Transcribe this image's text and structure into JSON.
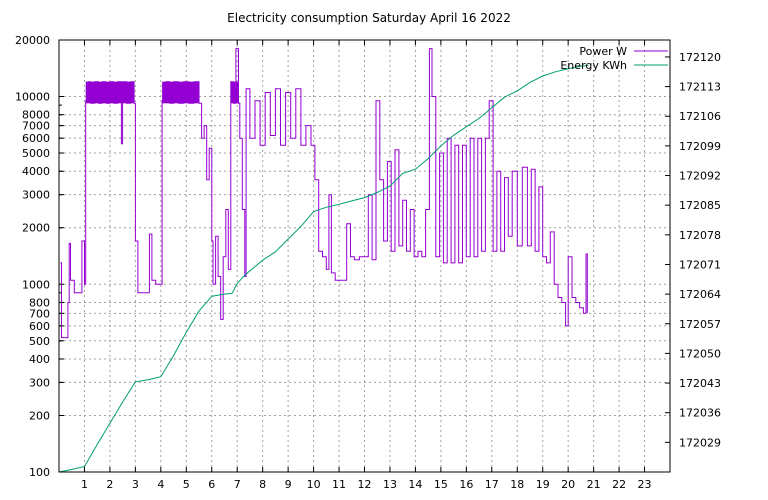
{
  "chart_data": {
    "type": "line",
    "title": "Electricity consumption Saturday April 16 2022",
    "x": {
      "ticks": [
        "1",
        "2",
        "3",
        "4",
        "5",
        "6",
        "7",
        "8",
        "9",
        "10",
        "11",
        "12",
        "13",
        "14",
        "15",
        "16",
        "17",
        "18",
        "19",
        "20",
        "21",
        "22",
        "23"
      ],
      "range": [
        0,
        24
      ]
    },
    "y_left": {
      "scale": "log",
      "range": [
        100,
        20000
      ],
      "ticks": [
        {
          "value": 100,
          "label": "100"
        },
        {
          "value": 200,
          "label": "200"
        },
        {
          "value": 300,
          "label": "300"
        },
        {
          "value": 400,
          "label": "400"
        },
        {
          "value": 500,
          "label": "500"
        },
        {
          "value": 600,
          "label": "600"
        },
        {
          "value": 700,
          "label": "700"
        },
        {
          "value": 800,
          "label": "800"
        },
        {
          "value": 1000,
          "label": "1000"
        },
        {
          "value": 2000,
          "label": "2000"
        },
        {
          "value": 3000,
          "label": "3000"
        },
        {
          "value": 4000,
          "label": "4000"
        },
        {
          "value": 5000,
          "label": "5000"
        },
        {
          "value": 6000,
          "label": "6000"
        },
        {
          "value": 7000,
          "label": "7000"
        },
        {
          "value": 8000,
          "label": "8000"
        },
        {
          "value": 10000,
          "label": "10000"
        },
        {
          "value": 20000,
          "label": "20000"
        }
      ]
    },
    "y_right": {
      "range": [
        172022,
        172124
      ],
      "ticks": [
        "172029",
        "172036",
        "172043",
        "172050",
        "172057",
        "172064",
        "172071",
        "172078",
        "172085",
        "172092",
        "172099",
        "172106",
        "172113",
        "172120"
      ],
      "tick_values": [
        172029,
        172036,
        172043,
        172050,
        172057,
        172064,
        172071,
        172078,
        172085,
        172092,
        172099,
        172106,
        172113,
        172120
      ]
    },
    "grid": true,
    "legend_position": "top-right",
    "series": [
      {
        "name": "Power W",
        "axis": "left",
        "color": "#9400d3",
        "points": [
          [
            0.05,
            1300
          ],
          [
            0.1,
            520
          ],
          [
            0.2,
            520
          ],
          [
            0.3,
            520
          ],
          [
            0.35,
            800
          ],
          [
            0.4,
            1650
          ],
          [
            0.45,
            1050
          ],
          [
            0.55,
            1050
          ],
          [
            0.6,
            900
          ],
          [
            0.8,
            900
          ],
          [
            0.9,
            1700
          ],
          [
            1.0,
            1000
          ],
          [
            1.05,
            9500
          ],
          [
            1.15,
            12000
          ],
          [
            1.25,
            9200
          ],
          [
            1.4,
            12000
          ],
          [
            1.55,
            9200
          ],
          [
            1.7,
            12000
          ],
          [
            1.85,
            9200
          ],
          [
            2.0,
            12000
          ],
          [
            2.15,
            9200
          ],
          [
            2.3,
            12000
          ],
          [
            2.45,
            5600
          ],
          [
            2.5,
            12000
          ],
          [
            2.65,
            9200
          ],
          [
            2.8,
            12000
          ],
          [
            2.95,
            9200
          ],
          [
            3.0,
            1700
          ],
          [
            3.1,
            900
          ],
          [
            3.3,
            900
          ],
          [
            3.5,
            900
          ],
          [
            3.55,
            1850
          ],
          [
            3.65,
            1050
          ],
          [
            3.8,
            1000
          ],
          [
            4.0,
            1000
          ],
          [
            4.05,
            9500
          ],
          [
            4.2,
            12000
          ],
          [
            4.35,
            9200
          ],
          [
            4.5,
            12000
          ],
          [
            4.7,
            9200
          ],
          [
            4.9,
            12000
          ],
          [
            5.1,
            9200
          ],
          [
            5.3,
            12000
          ],
          [
            5.5,
            9200
          ],
          [
            5.6,
            6000
          ],
          [
            5.7,
            7000
          ],
          [
            5.8,
            3600
          ],
          [
            5.9,
            5300
          ],
          [
            6.0,
            1700
          ],
          [
            6.05,
            1000
          ],
          [
            6.15,
            1800
          ],
          [
            6.25,
            1100
          ],
          [
            6.35,
            650
          ],
          [
            6.45,
            1400
          ],
          [
            6.55,
            2500
          ],
          [
            6.65,
            1200
          ],
          [
            6.75,
            12000
          ],
          [
            6.85,
            9200
          ],
          [
            6.95,
            18000
          ],
          [
            7.05,
            9200
          ],
          [
            7.1,
            6000
          ],
          [
            7.2,
            2500
          ],
          [
            7.3,
            1100
          ],
          [
            7.35,
            11000
          ],
          [
            7.5,
            6000
          ],
          [
            7.7,
            9500
          ],
          [
            7.9,
            5500
          ],
          [
            8.1,
            10500
          ],
          [
            8.3,
            6200
          ],
          [
            8.5,
            11000
          ],
          [
            8.7,
            5500
          ],
          [
            8.9,
            10500
          ],
          [
            9.1,
            6000
          ],
          [
            9.3,
            11000
          ],
          [
            9.5,
            5500
          ],
          [
            9.7,
            7000
          ],
          [
            9.9,
            5500
          ],
          [
            10.05,
            3600
          ],
          [
            10.2,
            1500
          ],
          [
            10.35,
            1400
          ],
          [
            10.5,
            1200
          ],
          [
            10.6,
            3000
          ],
          [
            10.7,
            1150
          ],
          [
            10.85,
            1050
          ],
          [
            11.0,
            1050
          ],
          [
            11.15,
            1050
          ],
          [
            11.3,
            2100
          ],
          [
            11.45,
            1400
          ],
          [
            11.6,
            1350
          ],
          [
            11.8,
            1400
          ],
          [
            12.0,
            1400
          ],
          [
            12.15,
            3000
          ],
          [
            12.3,
            1350
          ],
          [
            12.45,
            9500
          ],
          [
            12.6,
            3600
          ],
          [
            12.75,
            1700
          ],
          [
            12.9,
            4500
          ],
          [
            13.05,
            1500
          ],
          [
            13.2,
            5200
          ],
          [
            13.35,
            1600
          ],
          [
            13.5,
            2800
          ],
          [
            13.65,
            1500
          ],
          [
            13.8,
            2500
          ],
          [
            13.95,
            1400
          ],
          [
            14.1,
            1500
          ],
          [
            14.25,
            1400
          ],
          [
            14.4,
            2500
          ],
          [
            14.55,
            18000
          ],
          [
            14.65,
            10000
          ],
          [
            14.8,
            1400
          ],
          [
            14.95,
            5000
          ],
          [
            15.1,
            1300
          ],
          [
            15.25,
            6000
          ],
          [
            15.4,
            1300
          ],
          [
            15.55,
            5500
          ],
          [
            15.7,
            1300
          ],
          [
            15.85,
            5500
          ],
          [
            16.0,
            1400
          ],
          [
            16.15,
            6000
          ],
          [
            16.3,
            1400
          ],
          [
            16.45,
            6000
          ],
          [
            16.6,
            1500
          ],
          [
            16.75,
            6000
          ],
          [
            16.9,
            9500
          ],
          [
            17.05,
            1500
          ],
          [
            17.2,
            4000
          ],
          [
            17.35,
            1500
          ],
          [
            17.5,
            3700
          ],
          [
            17.65,
            1800
          ],
          [
            17.8,
            4000
          ],
          [
            18.0,
            1600
          ],
          [
            18.2,
            4200
          ],
          [
            18.4,
            1600
          ],
          [
            18.55,
            4100
          ],
          [
            18.7,
            1500
          ],
          [
            18.85,
            3300
          ],
          [
            19.0,
            1400
          ],
          [
            19.15,
            1300
          ],
          [
            19.3,
            1900
          ],
          [
            19.45,
            1000
          ],
          [
            19.6,
            850
          ],
          [
            19.75,
            800
          ],
          [
            19.85,
            800
          ],
          [
            19.9,
            600
          ],
          [
            20.0,
            1400
          ],
          [
            20.15,
            850
          ],
          [
            20.3,
            800
          ],
          [
            20.45,
            750
          ],
          [
            20.6,
            700
          ],
          [
            20.7,
            1450
          ],
          [
            20.75,
            700
          ]
        ]
      },
      {
        "name": "Energy KWh",
        "axis": "right",
        "color": "#009e73",
        "points": [
          [
            0,
            172022
          ],
          [
            0.5,
            172022.6
          ],
          [
            1.0,
            172023.3
          ],
          [
            1.5,
            172028.5
          ],
          [
            2.0,
            172033.5
          ],
          [
            2.5,
            172038.5
          ],
          [
            3.0,
            172043.3
          ],
          [
            3.5,
            172043.8
          ],
          [
            4.0,
            172044.5
          ],
          [
            4.5,
            172049.5
          ],
          [
            5.0,
            172055
          ],
          [
            5.5,
            172060
          ],
          [
            6.0,
            172063.5
          ],
          [
            6.5,
            172064
          ],
          [
            6.8,
            172064.2
          ],
          [
            7.0,
            172066.5
          ],
          [
            7.3,
            172068.5
          ],
          [
            7.7,
            172070.5
          ],
          [
            8.0,
            172072
          ],
          [
            8.5,
            172074
          ],
          [
            9.0,
            172077
          ],
          [
            9.5,
            172080
          ],
          [
            10.0,
            172083.5
          ],
          [
            10.5,
            172084.5
          ],
          [
            11.0,
            172085.2
          ],
          [
            11.5,
            172086
          ],
          [
            12.0,
            172086.8
          ],
          [
            12.5,
            172088
          ],
          [
            13.0,
            172089.5
          ],
          [
            13.5,
            172092.5
          ],
          [
            14.0,
            172093.5
          ],
          [
            14.5,
            172096
          ],
          [
            15.0,
            172099
          ],
          [
            15.5,
            172101.5
          ],
          [
            16.0,
            172103.5
          ],
          [
            16.5,
            172105.5
          ],
          [
            17.0,
            172108
          ],
          [
            17.5,
            172110.5
          ],
          [
            18.0,
            172112
          ],
          [
            18.5,
            172114
          ],
          [
            19.0,
            172115.5
          ],
          [
            19.5,
            172116.5
          ],
          [
            20.0,
            172117.2
          ],
          [
            20.5,
            172117.8
          ],
          [
            20.8,
            172118
          ]
        ]
      }
    ]
  }
}
